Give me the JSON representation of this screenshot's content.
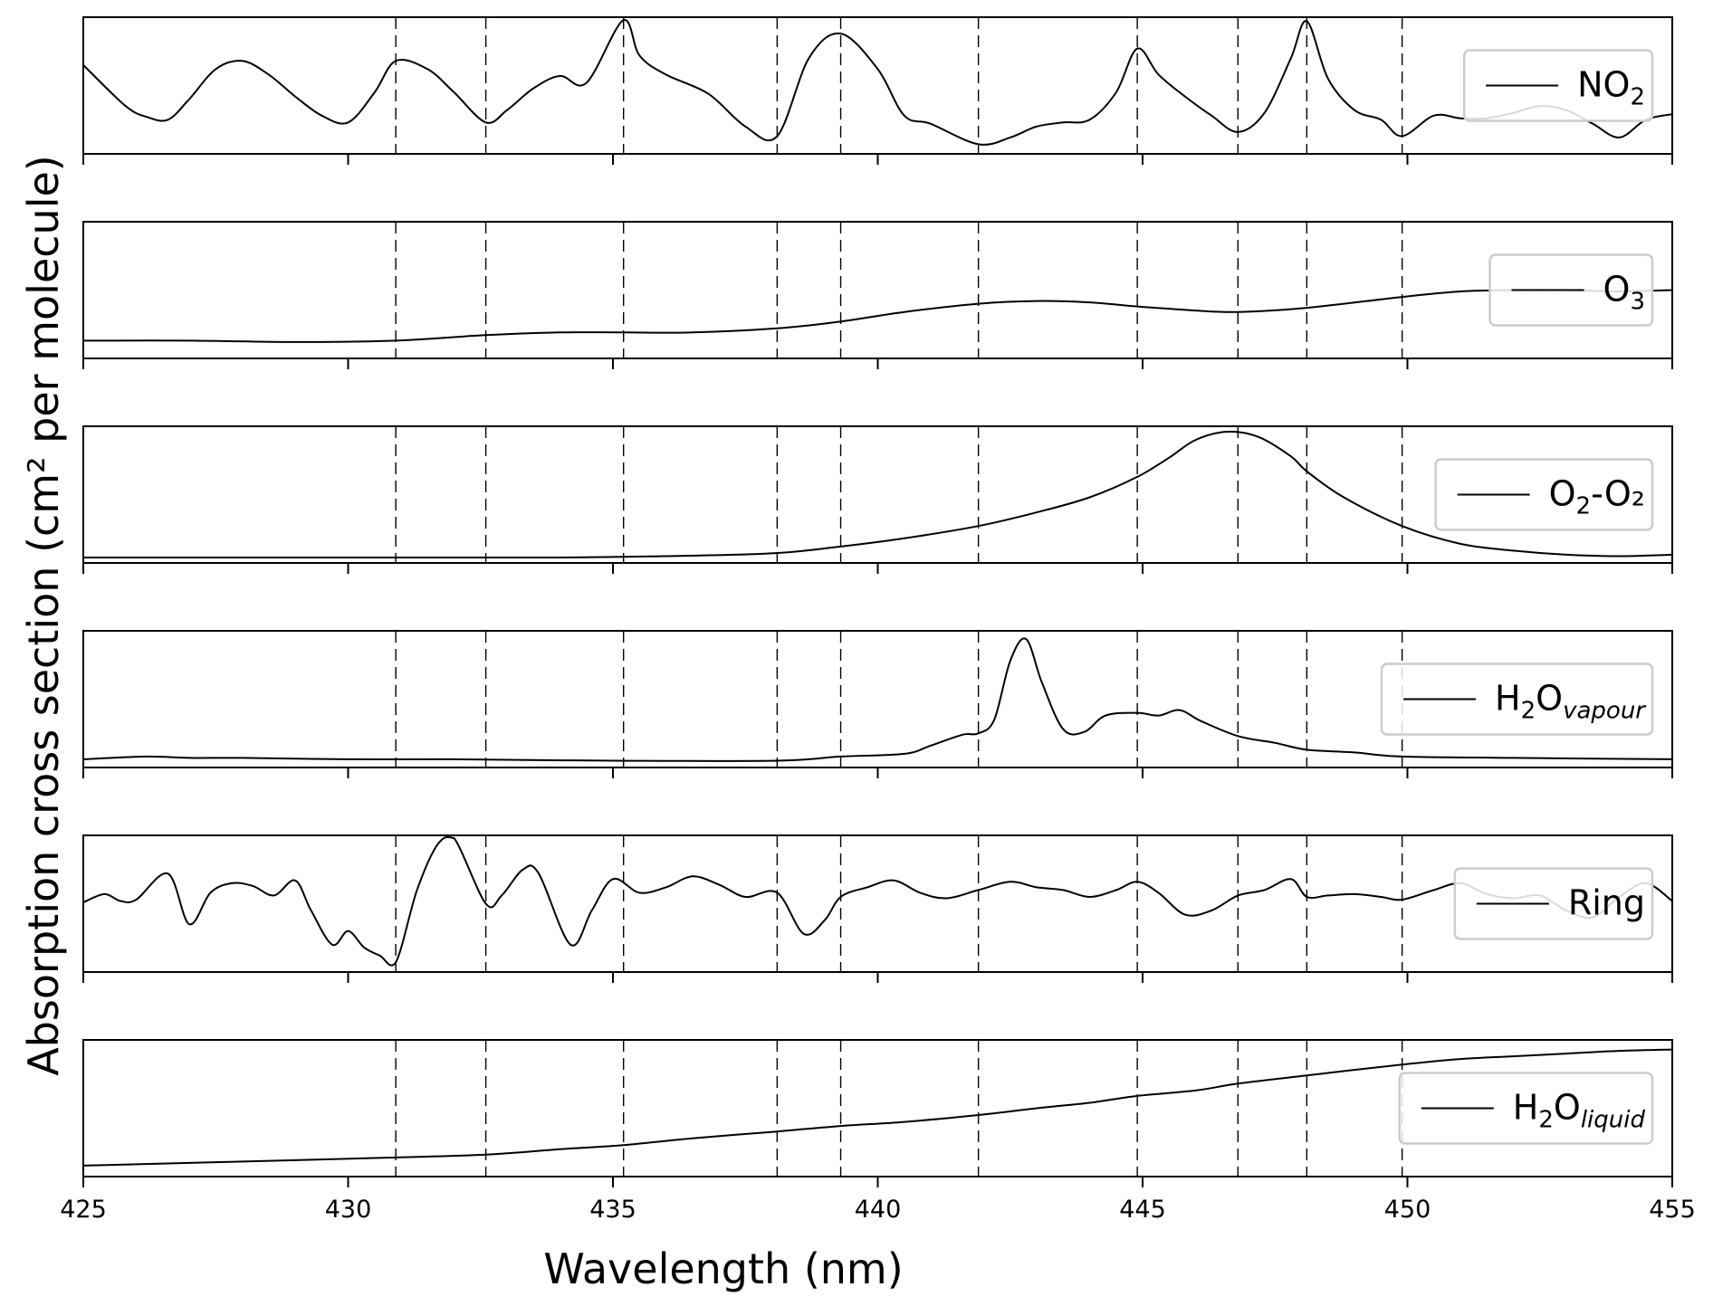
{
  "chart_data": {
    "type": "line",
    "xlabel": "Wavelength (nm)",
    "ylabel": "Absorption cross section (cm² per molecule)",
    "xlim": [
      425,
      455
    ],
    "xticks": [
      425,
      430,
      435,
      440,
      445,
      450,
      455
    ],
    "y_tick_labels_shown": false,
    "dashed_vertical_lines": [
      430.9,
      432.6,
      435.2,
      438.1,
      439.3,
      441.9,
      444.9,
      446.8,
      448.1,
      449.9
    ],
    "legend_position": "right",
    "panels": [
      {
        "series": [
          {
            "name": "NO₂",
            "legend": {
              "base": "NO",
              "sub": "2",
              "subItalic": false,
              "rest": ""
            },
            "ylim": [
              0,
              1
            ],
            "x": [
              425,
              425.8,
              426.2,
              426.6,
              427.0,
              427.5,
              428.0,
              428.5,
              429.0,
              429.5,
              430.0,
              430.5,
              430.9,
              431.5,
              432.0,
              432.6,
              433.0,
              433.5,
              434.0,
              434.5,
              435.2,
              435.5,
              436.0,
              436.8,
              437.5,
              438.1,
              438.7,
              439.3,
              440.0,
              440.5,
              441.0,
              441.9,
              442.5,
              443.0,
              443.5,
              444.0,
              444.5,
              444.9,
              445.3,
              445.8,
              446.3,
              446.8,
              447.3,
              447.8,
              448.1,
              448.5,
              449.0,
              449.5,
              449.9,
              450.5,
              451.0,
              451.5,
              452.0,
              452.5,
              453.0,
              453.5,
              454.0,
              454.5,
              455.0
            ],
            "y": [
              0.65,
              0.35,
              0.27,
              0.25,
              0.4,
              0.62,
              0.68,
              0.58,
              0.42,
              0.28,
              0.23,
              0.45,
              0.68,
              0.62,
              0.45,
              0.23,
              0.32,
              0.48,
              0.57,
              0.52,
              0.98,
              0.72,
              0.58,
              0.44,
              0.2,
              0.13,
              0.7,
              0.88,
              0.62,
              0.28,
              0.22,
              0.07,
              0.12,
              0.2,
              0.23,
              0.25,
              0.45,
              0.77,
              0.58,
              0.42,
              0.28,
              0.16,
              0.3,
              0.7,
              0.97,
              0.55,
              0.32,
              0.25,
              0.13,
              0.28,
              0.26,
              0.26,
              0.3,
              0.35,
              0.32,
              0.22,
              0.12,
              0.25,
              0.29
            ]
          }
        ]
      },
      {
        "series": [
          {
            "name": "O₃",
            "legend": {
              "base": "O",
              "sub": "3",
              "subItalic": false,
              "rest": ""
            },
            "ylim": [
              0,
              1
            ],
            "x": [
              425,
              427,
              429,
              430.9,
              432.6,
              434,
              435.2,
              436.5,
              438.1,
              439.3,
              440.5,
              441.9,
              443,
              444,
              444.9,
              446,
              446.8,
              448.1,
              449.9,
              451,
              452,
              453,
              454,
              455
            ],
            "y": [
              0.13,
              0.13,
              0.12,
              0.13,
              0.17,
              0.19,
              0.19,
              0.19,
              0.22,
              0.27,
              0.34,
              0.4,
              0.42,
              0.41,
              0.38,
              0.35,
              0.34,
              0.37,
              0.45,
              0.49,
              0.5,
              0.5,
              0.49,
              0.5
            ]
          }
        ]
      },
      {
        "series": [
          {
            "name": "O₂-O₂",
            "legend": {
              "base": "O",
              "sub": "2",
              "subItalic": false,
              "rest": "-O₂"
            },
            "ylim": [
              0,
              1
            ],
            "x": [
              425,
              430,
              434,
              436,
              438,
              439.3,
              440.5,
              441.9,
              443,
              444,
              444.9,
              445.5,
              446,
              446.6,
              447.2,
              447.8,
              448.1,
              448.8,
              449.9,
              451,
              452,
              453,
              454,
              455
            ],
            "y": [
              0.04,
              0.04,
              0.04,
              0.05,
              0.07,
              0.12,
              0.18,
              0.27,
              0.37,
              0.48,
              0.63,
              0.77,
              0.9,
              0.96,
              0.92,
              0.78,
              0.67,
              0.48,
              0.27,
              0.14,
              0.09,
              0.06,
              0.05,
              0.06
            ]
          }
        ]
      },
      {
        "series": [
          {
            "name": "H₂Ovapour",
            "legend": {
              "base": "H",
              "sub": "2",
              "subItalic": false,
              "rest": "O",
              "restSub": "vapour"
            },
            "ylim": [
              0,
              1
            ],
            "x": [
              425,
              426.2,
              427,
              428,
              430,
              432,
              435,
              438.1,
              439.3,
              440.5,
              441,
              441.6,
              441.9,
              442.2,
              442.5,
              442.8,
              443.1,
              443.5,
              443.9,
              444.3,
              444.9,
              445.3,
              445.7,
              446.1,
              446.8,
              447.5,
              448.1,
              449.0,
              449.9,
              452,
              455
            ],
            "y": [
              0.06,
              0.08,
              0.07,
              0.07,
              0.06,
              0.06,
              0.05,
              0.05,
              0.08,
              0.1,
              0.16,
              0.24,
              0.25,
              0.35,
              0.78,
              0.94,
              0.62,
              0.28,
              0.26,
              0.38,
              0.4,
              0.38,
              0.42,
              0.34,
              0.23,
              0.18,
              0.13,
              0.11,
              0.08,
              0.07,
              0.06
            ]
          }
        ]
      },
      {
        "series": [
          {
            "name": "Ring",
            "legend": {
              "base": "Ring",
              "sub": "",
              "subItalic": false,
              "rest": ""
            },
            "ylim": [
              0,
              1
            ],
            "x": [
              425,
              425.4,
              425.7,
              426,
              426.6,
              427.0,
              427.4,
              427.8,
              428.2,
              428.6,
              429.0,
              429.3,
              429.7,
              430.0,
              430.3,
              430.6,
              430.9,
              431.3,
              431.7,
              432.0,
              432.6,
              432.9,
              433.3,
              433.6,
              434.2,
              434.6,
              435.0,
              435.5,
              436.0,
              436.5,
              437.0,
              437.5,
              438.1,
              438.6,
              439.0,
              439.3,
              439.8,
              440.3,
              440.8,
              441.3,
              441.9,
              442.5,
              443.0,
              443.5,
              444.0,
              444.5,
              444.9,
              445.3,
              445.8,
              446.3,
              446.8,
              447.3,
              447.8,
              448.1,
              448.5,
              449.0,
              449.5,
              449.9,
              450.5,
              451.0,
              451.5,
              452.0,
              452.5,
              453.0,
              453.5,
              454.0,
              454.5,
              455.0
            ],
            "y": [
              0.51,
              0.57,
              0.52,
              0.53,
              0.72,
              0.35,
              0.58,
              0.65,
              0.63,
              0.56,
              0.67,
              0.45,
              0.2,
              0.3,
              0.18,
              0.12,
              0.07,
              0.6,
              0.94,
              0.98,
              0.5,
              0.56,
              0.75,
              0.72,
              0.2,
              0.45,
              0.68,
              0.58,
              0.62,
              0.7,
              0.64,
              0.55,
              0.58,
              0.28,
              0.38,
              0.55,
              0.62,
              0.67,
              0.58,
              0.54,
              0.6,
              0.66,
              0.62,
              0.6,
              0.55,
              0.6,
              0.66,
              0.58,
              0.42,
              0.45,
              0.56,
              0.6,
              0.68,
              0.55,
              0.56,
              0.57,
              0.55,
              0.53,
              0.6,
              0.65,
              0.57,
              0.54,
              0.56,
              0.45,
              0.4,
              0.55,
              0.65,
              0.52
            ]
          }
        ]
      },
      {
        "series": [
          {
            "name": "H₂Oliquid",
            "legend": {
              "base": "H",
              "sub": "2",
              "subItalic": false,
              "rest": "O",
              "restSub": "liquid"
            },
            "ylim": [
              0,
              1
            ],
            "x": [
              425,
              427,
              429,
              430.9,
              432.6,
              434,
              435.2,
              436.5,
              438.1,
              439.3,
              440.5,
              441.9,
              443,
              444,
              444.9,
              446,
              446.8,
              448.1,
              449.9,
              451,
              452,
              453,
              454,
              455
            ],
            "y": [
              0.08,
              0.1,
              0.12,
              0.14,
              0.16,
              0.2,
              0.23,
              0.28,
              0.33,
              0.37,
              0.4,
              0.45,
              0.5,
              0.54,
              0.59,
              0.63,
              0.68,
              0.74,
              0.82,
              0.86,
              0.88,
              0.9,
              0.92,
              0.93
            ]
          }
        ]
      }
    ]
  }
}
